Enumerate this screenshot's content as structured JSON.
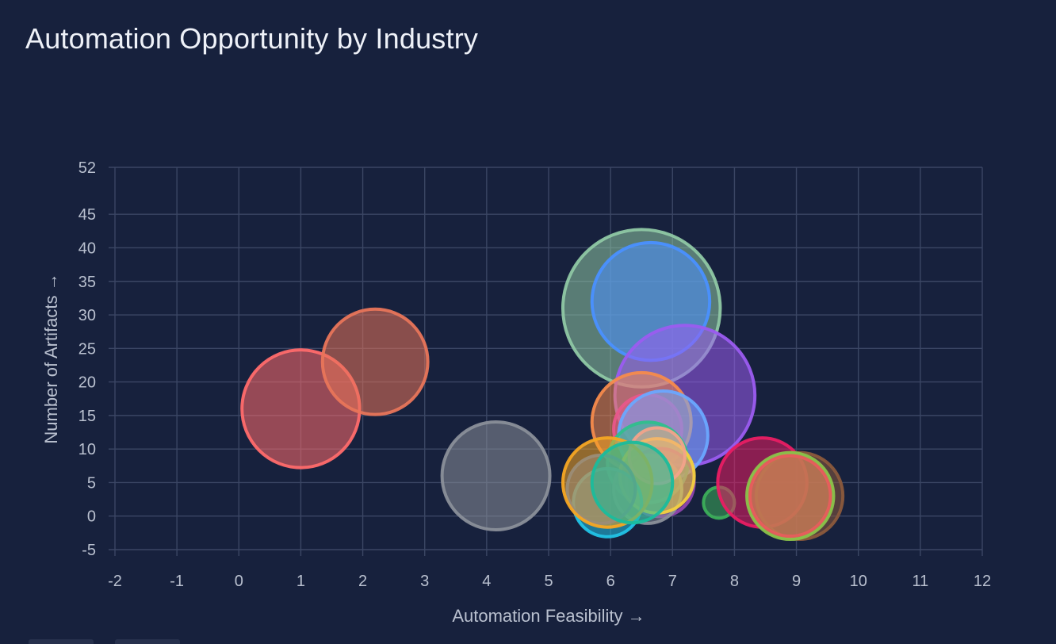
{
  "page": {
    "title": "Automation Opportunity by Industry"
  },
  "chart_data": {
    "type": "scatter",
    "subtype": "bubble",
    "title": "Automation Opportunity by Industry",
    "xlabel": "Automation Feasibility →",
    "ylabel": "Number of Artifacts →",
    "xlim": [
      -2,
      12
    ],
    "ylim": [
      -5,
      52
    ],
    "x_ticks": [
      -2,
      -1,
      0,
      1,
      2,
      3,
      4,
      5,
      6,
      7,
      8,
      9,
      10,
      11,
      12
    ],
    "y_ticks": [
      -5,
      0,
      5,
      10,
      15,
      20,
      25,
      30,
      35,
      40,
      45,
      52
    ],
    "grid": true,
    "bubble_size_unit": "x-axis units (radius)",
    "series": [
      {
        "x": 1.0,
        "y": 16,
        "size": 0.95,
        "color": "#ff6b6b"
      },
      {
        "x": 2.2,
        "y": 23,
        "size": 0.85,
        "color": "#e8755a"
      },
      {
        "x": 4.15,
        "y": 6,
        "size": 0.87,
        "color": "#8a8f99"
      },
      {
        "x": 6.5,
        "y": 31,
        "size": 1.27,
        "color": "#8fc8a4"
      },
      {
        "x": 6.65,
        "y": 32,
        "size": 0.95,
        "color": "#4a90ff"
      },
      {
        "x": 7.2,
        "y": 18,
        "size": 1.13,
        "color": "#9b5cf0"
      },
      {
        "x": 6.5,
        "y": 14,
        "size": 0.8,
        "color": "#f58b4c"
      },
      {
        "x": 6.6,
        "y": 13,
        "size": 0.55,
        "color": "#e8578a"
      },
      {
        "x": 6.85,
        "y": 12,
        "size": 0.72,
        "color": "#6aa8ff"
      },
      {
        "x": 6.6,
        "y": 8,
        "size": 0.65,
        "color": "#2fbf8c"
      },
      {
        "x": 6.8,
        "y": 5,
        "size": 0.55,
        "color": "#8e44ad"
      },
      {
        "x": 6.6,
        "y": 4,
        "size": 0.55,
        "color": "#8a8f99"
      },
      {
        "x": 6.75,
        "y": 6,
        "size": 0.6,
        "color": "#f4d03f"
      },
      {
        "x": 6.75,
        "y": 9,
        "size": 0.45,
        "color": "#f2a38a"
      },
      {
        "x": 5.95,
        "y": 2,
        "size": 0.55,
        "color": "#22c3e6"
      },
      {
        "x": 5.85,
        "y": 4,
        "size": 0.55,
        "color": "#2f6fdc"
      },
      {
        "x": 5.95,
        "y": 5,
        "size": 0.72,
        "color": "#f5a623"
      },
      {
        "x": 6.35,
        "y": 5,
        "size": 0.65,
        "color": "#1abc9c"
      },
      {
        "x": 7.75,
        "y": 2,
        "size": 0.25,
        "color": "#3cae5a"
      },
      {
        "x": 8.45,
        "y": 5,
        "size": 0.72,
        "color": "#e91e63"
      },
      {
        "x": 9.05,
        "y": 3,
        "size": 0.7,
        "color": "#8b5a3c"
      },
      {
        "x": 8.9,
        "y": 3,
        "size": 0.7,
        "color": "#8bc34a"
      },
      {
        "x": 8.9,
        "y": 3,
        "size": 0.65,
        "color": "#e85d5d"
      }
    ]
  }
}
